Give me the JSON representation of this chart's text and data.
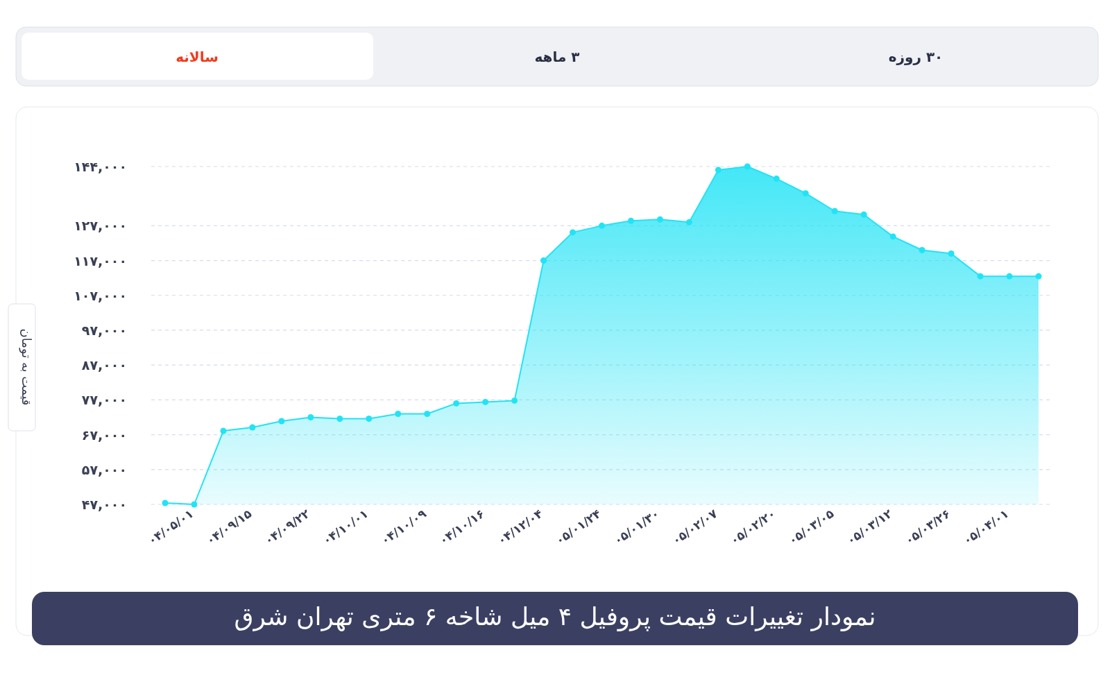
{
  "chart_data": {
    "type": "area",
    "title": "نمودار تغییرات قیمت پروفیل ۴ میل شاخه ۶ متری تهران شرق",
    "ylabel": "قیمت به تومان",
    "annotations": [
      "سالانه",
      "۳ ماهه",
      "۳۰ روزه"
    ],
    "categories": [
      null,
      "۰۴/۰۵/۰۱",
      null,
      "۰۴/۰۹/۱۵",
      null,
      "۰۴/۰۹/۲۲",
      null,
      "۰۴/۱۰/۰۱",
      null,
      "۰۴/۱۰/۰۹",
      null,
      "۰۴/۱۰/۱۶",
      null,
      "۰۴/۱۲/۰۴",
      null,
      "۰۵/۰۱/۲۴",
      null,
      "۰۵/۰۱/۳۰",
      null,
      "۰۵/۰۲/۰۷",
      null,
      "۰۵/۰۲/۲۰",
      null,
      "۰۵/۰۳/۰۵",
      null,
      "۰۵/۰۳/۱۲",
      null,
      "۰۵/۰۳/۲۶",
      null,
      "۰۵/۰۴/۰۱",
      null
    ],
    "series": [
      {
        "color": "#22e3f5",
        "values": [
          47400,
          47000,
          68100,
          69100,
          70900,
          72000,
          71600,
          71600,
          73000,
          73000,
          76000,
          76400,
          76800,
          117000,
          125100,
          127000,
          128400,
          128800,
          128000,
          143000,
          144000,
          140500,
          136300,
          131200,
          130200,
          123900,
          120000,
          119000,
          112500,
          112500,
          112500
        ]
      }
    ],
    "ylim": [
      47000,
      144000
    ],
    "yticks": [
      {
        "value": 47000,
        "label": "۴۷,۰۰۰"
      },
      {
        "value": 57000,
        "label": "۵۷,۰۰۰"
      },
      {
        "value": 67000,
        "label": "۶۷,۰۰۰"
      },
      {
        "value": 77000,
        "label": "۷۷,۰۰۰"
      },
      {
        "value": 87000,
        "label": "۸۷,۰۰۰"
      },
      {
        "value": 97000,
        "label": "۹۷,۰۰۰"
      },
      {
        "value": 107000,
        "label": "۱۰۷,۰۰۰"
      },
      {
        "value": 117000,
        "label": "۱۱۷,۰۰۰"
      },
      {
        "value": 127000,
        "label": "۱۲۷,۰۰۰"
      },
      {
        "value": 144000,
        "label": "۱۴۴,۰۰۰"
      }
    ],
    "grid": "y",
    "marker": "circle",
    "line_style": "solid"
  }
}
